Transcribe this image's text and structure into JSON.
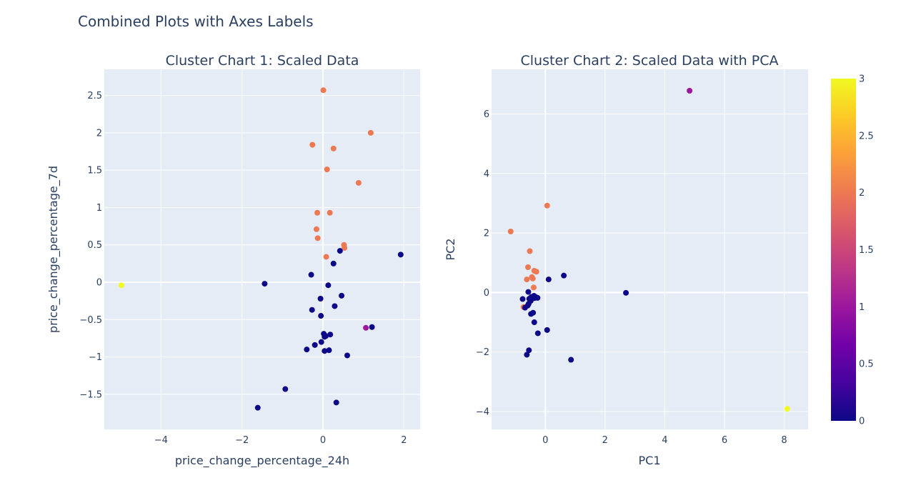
{
  "title": "Combined Plots with Axes Labels",
  "colorbar": {
    "ticks": [
      "0",
      "0.5",
      "1",
      "1.5",
      "2",
      "2.5",
      "3"
    ],
    "tick_values": [
      0,
      0.5,
      1,
      1.5,
      2,
      2.5,
      3
    ],
    "range": [
      0,
      3
    ]
  },
  "cluster_colors": [
    "#0d0887",
    "#9c179e",
    "#ed7953",
    "#f0f921"
  ],
  "chart_data": [
    {
      "type": "scatter",
      "title": "Cluster Chart 1: Scaled Data",
      "xlabel": "price_change_percentage_24h",
      "ylabel": "price_change_percentage_7d",
      "xlim": [
        -5.4,
        2.4
      ],
      "ylim": [
        -1.97,
        2.85
      ],
      "xticks": [
        -4,
        -2,
        0,
        2
      ],
      "xtick_labels": [
        "−4",
        "−2",
        "0",
        "2"
      ],
      "yticks": [
        -1.5,
        -1,
        -0.5,
        0,
        0.5,
        1,
        1.5,
        2,
        2.5
      ],
      "ytick_labels": [
        "−1.5",
        "−1",
        "−0.5",
        "0",
        "0.5",
        "1",
        "1.5",
        "2",
        "2.5"
      ],
      "grid": true,
      "points": [
        {
          "x": 0.01,
          "y": 2.57,
          "cluster": 2
        },
        {
          "x": 1.18,
          "y": 2.0,
          "cluster": 2
        },
        {
          "x": -0.26,
          "y": 1.84,
          "cluster": 2
        },
        {
          "x": 0.26,
          "y": 1.79,
          "cluster": 2
        },
        {
          "x": 0.1,
          "y": 1.51,
          "cluster": 2
        },
        {
          "x": 0.88,
          "y": 1.33,
          "cluster": 2
        },
        {
          "x": -0.14,
          "y": 0.93,
          "cluster": 2
        },
        {
          "x": 0.17,
          "y": 0.93,
          "cluster": 2
        },
        {
          "x": -0.16,
          "y": 0.71,
          "cluster": 2
        },
        {
          "x": -0.13,
          "y": 0.59,
          "cluster": 2
        },
        {
          "x": 0.52,
          "y": 0.5,
          "cluster": 2
        },
        {
          "x": 0.53,
          "y": 0.46,
          "cluster": 2
        },
        {
          "x": 0.08,
          "y": 0.34,
          "cluster": 2
        },
        {
          "x": 0.42,
          "y": 0.42,
          "cluster": 0
        },
        {
          "x": 1.92,
          "y": 0.37,
          "cluster": 0
        },
        {
          "x": 0.26,
          "y": 0.25,
          "cluster": 0
        },
        {
          "x": -0.29,
          "y": 0.1,
          "cluster": 0
        },
        {
          "x": -1.44,
          "y": -0.02,
          "cluster": 0
        },
        {
          "x": 0.13,
          "y": -0.04,
          "cluster": 0
        },
        {
          "x": -0.06,
          "y": -0.22,
          "cluster": 0
        },
        {
          "x": 0.46,
          "y": -0.18,
          "cluster": 0
        },
        {
          "x": 0.29,
          "y": -0.32,
          "cluster": 0
        },
        {
          "x": -0.27,
          "y": -0.37,
          "cluster": 0
        },
        {
          "x": -0.05,
          "y": -0.45,
          "cluster": 0
        },
        {
          "x": 1.06,
          "y": -0.61,
          "cluster": 1
        },
        {
          "x": 1.21,
          "y": -0.6,
          "cluster": 0
        },
        {
          "x": 0.02,
          "y": -0.69,
          "cluster": 0
        },
        {
          "x": 0.07,
          "y": -0.72,
          "cluster": 0
        },
        {
          "x": 0.18,
          "y": -0.7,
          "cluster": 0
        },
        {
          "x": 0.04,
          "y": -0.73,
          "cluster": 0
        },
        {
          "x": -0.04,
          "y": -0.8,
          "cluster": 0
        },
        {
          "x": -0.2,
          "y": -0.84,
          "cluster": 0
        },
        {
          "x": -0.4,
          "y": -0.9,
          "cluster": 0
        },
        {
          "x": 0.04,
          "y": -0.92,
          "cluster": 0
        },
        {
          "x": 0.15,
          "y": -0.91,
          "cluster": 0
        },
        {
          "x": 0.6,
          "y": -0.98,
          "cluster": 0
        },
        {
          "x": -0.93,
          "y": -1.43,
          "cluster": 0
        },
        {
          "x": -1.61,
          "y": -1.68,
          "cluster": 0
        },
        {
          "x": 0.33,
          "y": -1.61,
          "cluster": 0
        },
        {
          "x": -4.98,
          "y": -0.04,
          "cluster": 3
        }
      ]
    },
    {
      "type": "scatter",
      "title": "Cluster Chart 2: Scaled Data with PCA",
      "xlabel": "PC1",
      "ylabel": "PC2",
      "xlim": [
        -1.8,
        8.8
      ],
      "ylim": [
        -4.6,
        7.5
      ],
      "xticks": [
        0,
        2,
        4,
        6,
        8
      ],
      "xtick_labels": [
        "0",
        "2",
        "4",
        "6",
        "8"
      ],
      "yticks": [
        -4,
        -2,
        0,
        2,
        4,
        6
      ],
      "ytick_labels": [
        "−4",
        "−2",
        "0",
        "2",
        "4",
        "6"
      ],
      "grid": true,
      "points": [
        {
          "x": 4.83,
          "y": 6.78,
          "cluster": 1
        },
        {
          "x": 8.1,
          "y": -3.91,
          "cluster": 3
        },
        {
          "x": 0.06,
          "y": 2.92,
          "cluster": 2
        },
        {
          "x": -1.16,
          "y": 2.05,
          "cluster": 2
        },
        {
          "x": -0.52,
          "y": 1.39,
          "cluster": 2
        },
        {
          "x": -0.58,
          "y": 0.85,
          "cluster": 2
        },
        {
          "x": -0.37,
          "y": 0.73,
          "cluster": 2
        },
        {
          "x": -0.3,
          "y": 0.7,
          "cluster": 2
        },
        {
          "x": -0.45,
          "y": 0.52,
          "cluster": 2
        },
        {
          "x": -0.42,
          "y": 0.47,
          "cluster": 2
        },
        {
          "x": -0.62,
          "y": 0.44,
          "cluster": 2
        },
        {
          "x": -0.39,
          "y": 0.17,
          "cluster": 2
        },
        {
          "x": -0.73,
          "y": -0.49,
          "cluster": 2
        },
        {
          "x": 0.11,
          "y": 0.44,
          "cluster": 0
        },
        {
          "x": 0.62,
          "y": 0.57,
          "cluster": 0
        },
        {
          "x": 2.7,
          "y": -0.01,
          "cluster": 0
        },
        {
          "x": -0.57,
          "y": 0.02,
          "cluster": 0
        },
        {
          "x": -0.38,
          "y": -0.11,
          "cluster": 0
        },
        {
          "x": -0.47,
          "y": -0.15,
          "cluster": 0
        },
        {
          "x": -0.31,
          "y": -0.16,
          "cluster": 0
        },
        {
          "x": -0.26,
          "y": -0.18,
          "cluster": 0
        },
        {
          "x": -0.37,
          "y": -0.19,
          "cluster": 0
        },
        {
          "x": -0.54,
          "y": -0.21,
          "cluster": 0
        },
        {
          "x": -0.76,
          "y": -0.22,
          "cluster": 0
        },
        {
          "x": -0.49,
          "y": -0.28,
          "cluster": 0
        },
        {
          "x": -0.56,
          "y": -0.38,
          "cluster": 0
        },
        {
          "x": -0.59,
          "y": -0.44,
          "cluster": 0
        },
        {
          "x": -0.68,
          "y": -0.51,
          "cluster": 0
        },
        {
          "x": -0.41,
          "y": -0.68,
          "cluster": 0
        },
        {
          "x": -0.48,
          "y": -0.72,
          "cluster": 0
        },
        {
          "x": -0.37,
          "y": -1.0,
          "cluster": 0
        },
        {
          "x": 0.06,
          "y": -1.26,
          "cluster": 0
        },
        {
          "x": -0.25,
          "y": -1.37,
          "cluster": 0
        },
        {
          "x": -0.55,
          "y": -1.94,
          "cluster": 0
        },
        {
          "x": -0.62,
          "y": -2.09,
          "cluster": 0
        },
        {
          "x": 0.86,
          "y": -2.26,
          "cluster": 0
        }
      ]
    }
  ]
}
